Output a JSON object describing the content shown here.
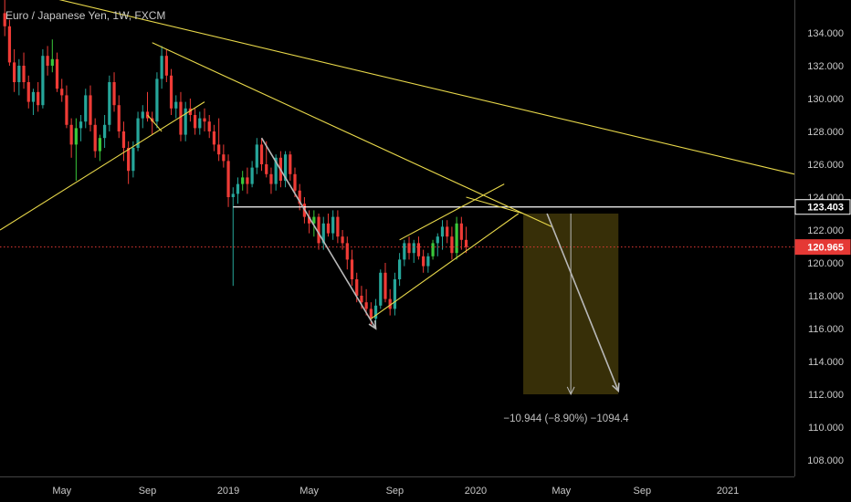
{
  "header": {
    "title": "Euro / Japanese Yen, 1W, FXCM"
  },
  "colors": {
    "background": "#000000",
    "up": "#26a69a",
    "up_bright": "#39c83a",
    "down": "#ef3b36",
    "trendline": "#e8d84a",
    "projection": "#b8b8b8",
    "level_line": "#ffffff",
    "current_price": "#e53935",
    "target_box": "#3a3208",
    "axis_text": "#c8c8c8"
  },
  "chart_data": {
    "type": "candlestick",
    "symbol": "Euro / Japanese Yen",
    "interval": "1W",
    "source": "FXCM",
    "ylim": [
      107,
      136
    ],
    "y_ticks": [
      108,
      110,
      112,
      114,
      116,
      118,
      120,
      122,
      124,
      126,
      128,
      130,
      132,
      134
    ],
    "y_tick_labels": [
      "108.000",
      "110.000",
      "112.000",
      "114.000",
      "116.000",
      "118.000",
      "120.000",
      "122.000",
      "124.000",
      "126.000",
      "128.000",
      "130.000",
      "132.000",
      "134.000"
    ],
    "x_ticks": [
      {
        "week": 0,
        "label": "May"
      },
      {
        "week": 18,
        "label": "Sep"
      },
      {
        "week": 35,
        "label": "2019"
      },
      {
        "week": 52,
        "label": "May"
      },
      {
        "week": 70,
        "label": "Sep"
      },
      {
        "week": 87,
        "label": "2020"
      },
      {
        "week": 105,
        "label": "May"
      },
      {
        "week": 122,
        "label": "Sep"
      },
      {
        "week": 140,
        "label": "2021"
      }
    ],
    "x_range": [
      -13,
      154
    ],
    "horizontal_level": {
      "value": 123.403,
      "label": "123.403",
      "from_week": 36
    },
    "current_price": {
      "value": 120.965,
      "label": "120.965"
    },
    "target_box": {
      "from_week": 97,
      "to_week": 117,
      "top": 123.0,
      "bottom": 112.0
    },
    "projection_label": "−10.944 (−8.90%) −1094.4",
    "candles": [
      [
        -12,
        135.2,
        136.0,
        133.8,
        134.4
      ],
      [
        -11,
        134.4,
        134.8,
        132.0,
        132.2
      ],
      [
        -10,
        132.2,
        133.0,
        130.4,
        131.0
      ],
      [
        -9,
        131.0,
        132.4,
        130.2,
        132.0
      ],
      [
        -8,
        132.0,
        132.8,
        130.6,
        131.0
      ],
      [
        -7,
        131.0,
        131.4,
        129.4,
        129.8
      ],
      [
        -6,
        129.8,
        130.6,
        129.0,
        130.4
      ],
      [
        -5,
        130.4,
        131.0,
        129.2,
        129.6
      ],
      [
        -4,
        129.6,
        133.0,
        129.4,
        132.6
      ],
      [
        -3,
        132.6,
        133.2,
        131.4,
        132.0
      ],
      [
        -2,
        132.0,
        133.6,
        131.6,
        132.4
      ],
      [
        -1,
        132.4,
        132.8,
        130.4,
        130.6
      ],
      [
        0,
        130.6,
        131.2,
        129.8,
        130.2
      ],
      [
        1,
        130.2,
        130.8,
        128.2,
        128.4
      ],
      [
        2,
        128.4,
        128.8,
        126.4,
        127.2
      ],
      [
        3,
        127.2,
        128.8,
        125.0,
        128.2
      ],
      [
        4,
        128.2,
        129.0,
        127.4,
        128.6
      ],
      [
        5,
        128.6,
        130.6,
        128.2,
        130.2
      ],
      [
        6,
        130.2,
        130.8,
        128.0,
        128.4
      ],
      [
        7,
        128.4,
        128.8,
        126.4,
        126.8
      ],
      [
        8,
        126.8,
        127.8,
        126.2,
        127.6
      ],
      [
        9,
        127.6,
        129.0,
        127.0,
        128.4
      ],
      [
        10,
        128.4,
        131.4,
        128.0,
        131.0
      ],
      [
        11,
        131.0,
        131.6,
        129.2,
        129.6
      ],
      [
        12,
        129.6,
        130.2,
        127.6,
        128.0
      ],
      [
        13,
        128.0,
        128.6,
        126.2,
        127.0
      ],
      [
        14,
        127.0,
        127.4,
        124.8,
        125.6
      ],
      [
        15,
        125.6,
        127.4,
        125.2,
        127.0
      ],
      [
        16,
        127.0,
        129.2,
        126.8,
        128.8
      ],
      [
        17,
        128.8,
        129.6,
        128.2,
        129.2
      ],
      [
        18,
        129.2,
        130.4,
        128.6,
        128.8
      ],
      [
        19,
        128.8,
        129.2,
        127.8,
        128.6
      ],
      [
        20,
        128.6,
        131.6,
        128.2,
        131.2
      ],
      [
        21,
        131.2,
        133.2,
        130.6,
        132.6
      ],
      [
        22,
        132.6,
        133.0,
        131.0,
        131.4
      ],
      [
        23,
        131.4,
        131.8,
        129.0,
        129.4
      ],
      [
        24,
        129.4,
        130.2,
        128.8,
        129.8
      ],
      [
        25,
        129.8,
        130.4,
        127.4,
        127.8
      ],
      [
        26,
        127.8,
        129.8,
        127.4,
        129.4
      ],
      [
        27,
        129.4,
        130.0,
        128.6,
        129.0
      ],
      [
        28,
        129.0,
        129.4,
        127.8,
        128.2
      ],
      [
        29,
        128.2,
        129.2,
        127.8,
        128.8
      ],
      [
        30,
        128.8,
        129.4,
        128.0,
        128.6
      ],
      [
        31,
        128.6,
        129.0,
        127.6,
        128.0
      ],
      [
        32,
        128.0,
        128.4,
        126.8,
        127.2
      ],
      [
        33,
        127.2,
        128.8,
        126.2,
        126.6
      ],
      [
        34,
        126.6,
        127.2,
        125.8,
        126.2
      ],
      [
        35,
        126.2,
        126.6,
        123.4,
        124.0
      ],
      [
        36,
        124.0,
        124.6,
        118.6,
        124.2
      ],
      [
        37,
        124.2,
        125.2,
        123.6,
        124.8
      ],
      [
        38,
        124.8,
        125.6,
        124.4,
        125.2
      ],
      [
        39,
        125.2,
        125.8,
        124.2,
        124.8
      ],
      [
        40,
        124.8,
        126.2,
        124.6,
        125.8
      ],
      [
        41,
        125.8,
        127.6,
        125.4,
        127.2
      ],
      [
        42,
        127.2,
        127.6,
        125.6,
        126.0
      ],
      [
        43,
        126.0,
        127.4,
        125.2,
        125.4
      ],
      [
        44,
        125.4,
        125.8,
        124.2,
        124.8
      ],
      [
        45,
        124.8,
        126.6,
        124.4,
        126.4
      ],
      [
        46,
        126.4,
        126.8,
        124.6,
        125.0
      ],
      [
        47,
        125.0,
        126.8,
        124.6,
        126.6
      ],
      [
        48,
        126.6,
        126.8,
        125.0,
        125.4
      ],
      [
        49,
        125.4,
        125.8,
        124.0,
        124.4
      ],
      [
        50,
        124.4,
        124.8,
        123.2,
        123.6
      ],
      [
        51,
        123.6,
        124.0,
        122.4,
        122.8
      ],
      [
        52,
        122.8,
        123.2,
        121.8,
        122.4
      ],
      [
        53,
        122.4,
        123.2,
        121.6,
        122.8
      ],
      [
        54,
        122.8,
        123.0,
        120.8,
        121.2
      ],
      [
        55,
        121.2,
        122.8,
        120.8,
        122.4
      ],
      [
        56,
        122.4,
        123.0,
        121.6,
        121.8
      ],
      [
        57,
        121.8,
        123.2,
        121.4,
        122.8
      ],
      [
        58,
        122.8,
        123.2,
        121.2,
        121.6
      ],
      [
        59,
        121.6,
        122.0,
        120.8,
        121.2
      ],
      [
        60,
        121.2,
        121.6,
        119.6,
        120.2
      ],
      [
        61,
        120.2,
        120.8,
        118.6,
        119.0
      ],
      [
        62,
        119.0,
        119.4,
        117.6,
        118.0
      ],
      [
        63,
        118.0,
        118.6,
        117.2,
        117.6
      ],
      [
        64,
        117.6,
        118.4,
        116.8,
        117.2
      ],
      [
        65,
        117.2,
        117.6,
        116.2,
        116.6
      ],
      [
        66,
        116.6,
        117.8,
        116.2,
        117.4
      ],
      [
        67,
        117.4,
        119.6,
        117.2,
        119.4
      ],
      [
        68,
        119.4,
        120.0,
        117.6,
        117.8
      ],
      [
        69,
        117.8,
        118.4,
        116.8,
        117.2
      ],
      [
        70,
        117.2,
        119.4,
        116.8,
        119.0
      ],
      [
        71,
        119.0,
        120.6,
        118.6,
        120.2
      ],
      [
        72,
        120.2,
        121.4,
        119.8,
        121.2
      ],
      [
        73,
        121.2,
        121.6,
        120.2,
        120.6
      ],
      [
        74,
        120.6,
        121.4,
        120.0,
        121.2
      ],
      [
        75,
        121.2,
        121.6,
        120.2,
        120.4
      ],
      [
        76,
        120.4,
        120.8,
        119.4,
        119.8
      ],
      [
        77,
        119.8,
        120.6,
        119.4,
        120.4
      ],
      [
        78,
        120.4,
        121.4,
        120.2,
        121.2
      ],
      [
        79,
        121.2,
        121.8,
        120.4,
        121.6
      ],
      [
        80,
        121.6,
        122.6,
        120.8,
        122.2
      ],
      [
        81,
        122.2,
        122.6,
        121.2,
        121.6
      ],
      [
        82,
        121.6,
        122.2,
        120.2,
        120.6
      ],
      [
        83,
        120.6,
        122.8,
        120.2,
        122.4
      ],
      [
        84,
        122.4,
        122.8,
        120.8,
        121.4
      ],
      [
        85,
        121.4,
        122.2,
        120.6,
        120.965
      ]
    ],
    "lines": [
      {
        "kind": "trendline",
        "points": [
          [
            -13,
            122.0
          ],
          [
            30,
            129.8
          ]
        ]
      },
      {
        "kind": "trendline",
        "points": [
          [
            -6,
            136.4
          ],
          [
            154,
            125.4
          ]
        ]
      },
      {
        "kind": "trendline",
        "points": [
          [
            19,
            133.4
          ],
          [
            103,
            122.2
          ]
        ]
      },
      {
        "kind": "trendline",
        "points": [
          [
            85,
            124.0
          ],
          [
            97,
            123.0
          ]
        ]
      },
      {
        "kind": "trendline",
        "points": [
          [
            65,
            116.6
          ],
          [
            96,
            123.0
          ]
        ]
      },
      {
        "kind": "trendline",
        "points": [
          [
            71,
            121.4
          ],
          [
            93,
            124.8
          ]
        ]
      },
      {
        "kind": "trendline",
        "points": [
          [
            18,
            129.0
          ],
          [
            21,
            128.0
          ]
        ]
      },
      {
        "kind": "projection",
        "points": [
          [
            42,
            127.6
          ],
          [
            66,
            116.0
          ]
        ]
      },
      {
        "kind": "projection",
        "points": [
          [
            102,
            123.0
          ],
          [
            117,
            112.2
          ]
        ]
      },
      {
        "kind": "measure",
        "points": [
          [
            107,
            123.0
          ],
          [
            107,
            112.0
          ]
        ]
      }
    ]
  }
}
